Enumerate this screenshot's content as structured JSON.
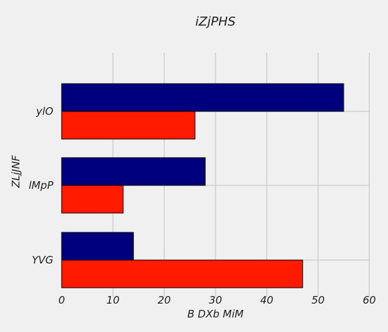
{
  "chart_data": {
    "type": "bar",
    "orientation": "horizontal",
    "title": "iZjPHS",
    "xlabel": "B DXb MiM",
    "ylabel": "ZLjJNF",
    "categories": [
      "YVG",
      "lMpP",
      "ylO"
    ],
    "series": [
      {
        "values": [
          47,
          12,
          26
        ],
        "color": "#ff1a00"
      },
      {
        "values": [
          14,
          28,
          55
        ],
        "color": "#00007f"
      }
    ],
    "xlim": [
      0,
      60
    ],
    "xticks": [
      0,
      10,
      20,
      30,
      40,
      50,
      60
    ],
    "grid": true,
    "legend": "none"
  }
}
